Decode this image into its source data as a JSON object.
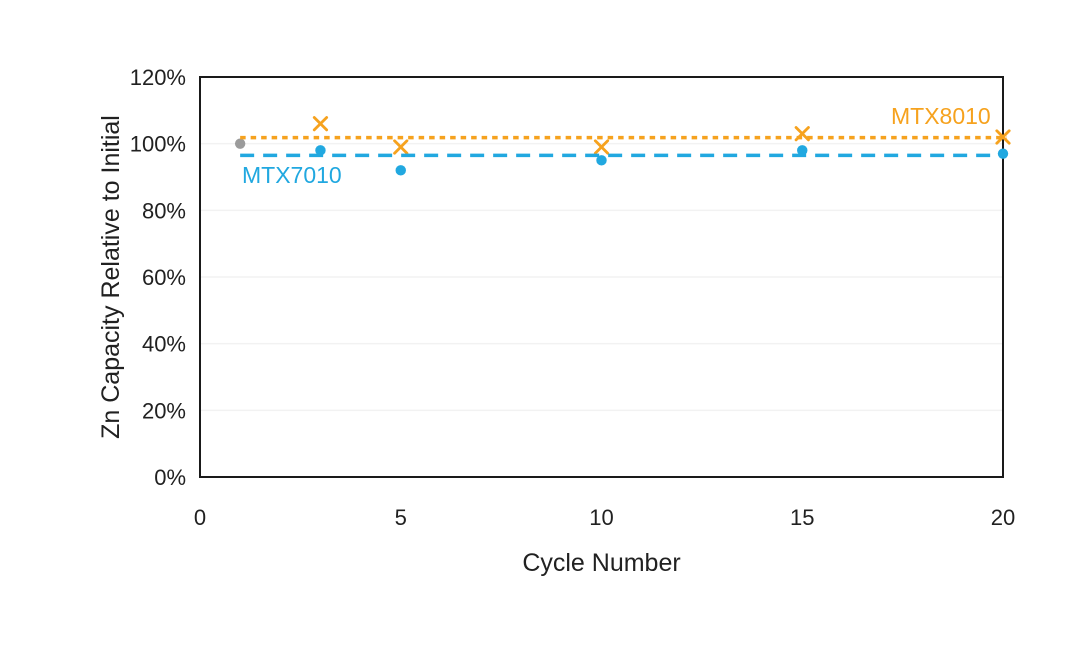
{
  "chart_data": {
    "type": "scatter",
    "title": "",
    "xlabel": "Cycle Number",
    "ylabel": "Zn Capacity Relative to Initial",
    "legend_position": "inline-annotations",
    "grid": {
      "horizontal": true,
      "vertical": false,
      "color": "#f2f2f2"
    },
    "plot_border_color": "#1a1a1a",
    "text_color": "#212121",
    "x_axis": {
      "min": 0,
      "max": 20,
      "ticks": [
        0,
        5,
        10,
        15,
        20
      ]
    },
    "y_axis": {
      "min": 0,
      "max": 120,
      "ticks": [
        {
          "value": 0,
          "label": "0%"
        },
        {
          "value": 20,
          "label": "20%"
        },
        {
          "value": 40,
          "label": "40%"
        },
        {
          "value": 60,
          "label": "60%"
        },
        {
          "value": 80,
          "label": "80%"
        },
        {
          "value": 100,
          "label": "100%"
        },
        {
          "value": 120,
          "label": "120%"
        }
      ]
    },
    "series": [
      {
        "name": "initial-point",
        "color": "#9b9b9b",
        "marker": "circle",
        "points": [
          {
            "x": 1,
            "y": 100
          }
        ]
      },
      {
        "name": "MTX8010",
        "color": "#f6a21e",
        "marker": "x",
        "points": [
          {
            "x": 3,
            "y": 106
          },
          {
            "x": 5,
            "y": 99
          },
          {
            "x": 10,
            "y": 99
          },
          {
            "x": 15,
            "y": 103
          },
          {
            "x": 20,
            "y": 102
          }
        ],
        "trendline": {
          "value": 101.8,
          "style": "dotted",
          "x_start": 1,
          "x_end": 20.1
        },
        "label": {
          "text": "MTX8010"
        }
      },
      {
        "name": "MTX7010",
        "color": "#21a8e0",
        "marker": "circle",
        "points": [
          {
            "x": 3,
            "y": 98
          },
          {
            "x": 5,
            "y": 92
          },
          {
            "x": 10,
            "y": 95
          },
          {
            "x": 15,
            "y": 98
          },
          {
            "x": 20,
            "y": 97
          }
        ],
        "trendline": {
          "value": 96.5,
          "style": "dashed",
          "x_start": 1,
          "x_end": 20.1
        },
        "label": {
          "text": "MTX7010"
        }
      }
    ]
  }
}
